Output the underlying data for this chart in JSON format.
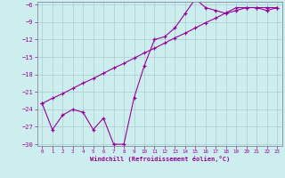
{
  "x": [
    0,
    1,
    2,
    3,
    4,
    5,
    6,
    7,
    8,
    9,
    10,
    11,
    12,
    13,
    14,
    15,
    16,
    17,
    18,
    19,
    20,
    21,
    22,
    23
  ],
  "y_jagged": [
    -23,
    -27.5,
    -25,
    -24,
    -24.5,
    -27.5,
    -25.5,
    -30,
    -30,
    -22,
    -16.5,
    -12,
    -11.5,
    -10,
    -7.5,
    -5,
    -6.5,
    -7,
    -7.5,
    -7,
    -6.5,
    -6.5,
    -7,
    -6.5
  ],
  "y_line": [
    -23.0,
    -22.1,
    -21.3,
    -20.4,
    -19.5,
    -18.7,
    -17.8,
    -16.9,
    -16.1,
    -15.2,
    -14.3,
    -13.5,
    -12.6,
    -11.7,
    -10.9,
    -10.0,
    -9.1,
    -8.3,
    -7.4,
    -6.5,
    -6.5,
    -6.5,
    -6.5,
    -6.5
  ],
  "line_color": "#990099",
  "bg_color": "#cceeee",
  "grid_color": "#aacccc",
  "axis_color": "#888899",
  "text_color": "#990099",
  "ylim": [
    -30,
    -6
  ],
  "xlim": [
    -0.5,
    23.5
  ],
  "yticks": [
    -6,
    -9,
    -12,
    -15,
    -18,
    -21,
    -24,
    -27,
    -30
  ],
  "xticks": [
    0,
    1,
    2,
    3,
    4,
    5,
    6,
    7,
    8,
    9,
    10,
    11,
    12,
    13,
    14,
    15,
    16,
    17,
    18,
    19,
    20,
    21,
    22,
    23
  ],
  "xlabel": "Windchill (Refroidissement éolien,°C)",
  "figsize": [
    3.2,
    2.0
  ],
  "dpi": 100
}
